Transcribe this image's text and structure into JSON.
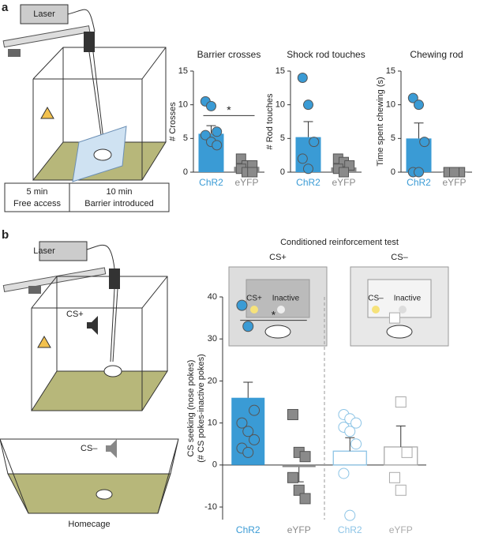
{
  "panels": {
    "a": {
      "label": "a",
      "laser": "Laser",
      "timeline": [
        [
          "5 min",
          "Free access"
        ],
        [
          "10 min",
          "Barrier introduced"
        ]
      ]
    },
    "b": {
      "label": "b",
      "laser": "Laser",
      "cage_cue": "CS+",
      "homecage_cue": "CS–",
      "homecage": "Homecage",
      "test_title": "Conditioned reinforcement test",
      "schematics": [
        {
          "title": "CS+",
          "active": "CS+",
          "inactive": "Inactive"
        },
        {
          "title": "CS–",
          "active": "CS–",
          "inactive": "Inactive"
        }
      ]
    }
  },
  "chart_data": [
    {
      "type": "bar",
      "title": "Barrier crosses",
      "ylabel": "# Crosses",
      "categories": [
        "ChR2",
        "eYFP"
      ],
      "values": [
        5.7,
        0.8
      ],
      "errors": [
        1.2,
        0.5
      ],
      "colors": [
        "#3a9bd5",
        "#8a8a8a"
      ],
      "filled": [
        true,
        true
      ],
      "shapes": [
        "circle",
        "square"
      ],
      "points": [
        [
          10.5,
          9.8,
          6,
          5.5,
          4.5,
          4
        ],
        [
          2,
          1,
          1,
          0.5,
          0,
          0
        ]
      ],
      "ylim": [
        0,
        15
      ],
      "yticks": [
        0,
        5,
        10,
        15
      ],
      "significance": "*"
    },
    {
      "type": "bar",
      "title": "Shock rod touches",
      "ylabel": "# Rod touches",
      "categories": [
        "ChR2",
        "eYFP"
      ],
      "values": [
        5.2,
        0.7
      ],
      "errors": [
        2.3,
        0.4
      ],
      "colors": [
        "#3a9bd5",
        "#8a8a8a"
      ],
      "filled": [
        true,
        true
      ],
      "shapes": [
        "circle",
        "square"
      ],
      "points": [
        [
          14,
          10,
          4.5,
          2,
          0.5
        ],
        [
          2,
          1.5,
          1,
          0.5,
          0
        ]
      ],
      "ylim": [
        0,
        15
      ],
      "yticks": [
        0,
        5,
        10,
        15
      ]
    },
    {
      "type": "bar",
      "title": "Chewing rod",
      "ylabel": "Time spent chewing (s)",
      "categories": [
        "ChR2",
        "eYFP"
      ],
      "values": [
        5,
        0
      ],
      "errors": [
        2.3,
        0
      ],
      "colors": [
        "#3a9bd5",
        "#8a8a8a"
      ],
      "filled": [
        true,
        true
      ],
      "shapes": [
        "circle",
        "square"
      ],
      "points": [
        [
          11,
          10,
          4.5,
          0,
          0
        ],
        [
          0,
          0,
          0,
          0,
          0
        ]
      ],
      "ylim": [
        0,
        15
      ],
      "yticks": [
        0,
        5,
        10,
        15
      ]
    },
    {
      "type": "bar",
      "ylabel": [
        "CS seeking (nose pokes)",
        "(# CS pokes-inactive pokes)"
      ],
      "categories": [
        "ChR2",
        "eYFP",
        "ChR2",
        "eYFP"
      ],
      "values": [
        16,
        -0.5,
        3.3,
        4.3
      ],
      "errors": [
        3.7,
        3.5,
        3.2,
        5
      ],
      "colors": [
        "#3a9bd5",
        "#8a8a8a",
        "#8cc4e6",
        "#aaaaaa"
      ],
      "filled": [
        true,
        true,
        false,
        false
      ],
      "shapes": [
        "circle",
        "square",
        "circle",
        "square"
      ],
      "points": [
        [
          38,
          33,
          13,
          10,
          8,
          6,
          4,
          3
        ],
        [
          12,
          3,
          2,
          -3,
          -6,
          -8
        ],
        [
          12,
          11,
          10,
          9,
          8,
          5,
          -2,
          -12
        ],
        [
          35,
          15,
          3,
          -3,
          -6
        ]
      ],
      "ylim": [
        -13,
        40
      ],
      "yticks": [
        -10,
        0,
        10,
        20,
        30,
        40
      ],
      "significance": "*"
    }
  ]
}
